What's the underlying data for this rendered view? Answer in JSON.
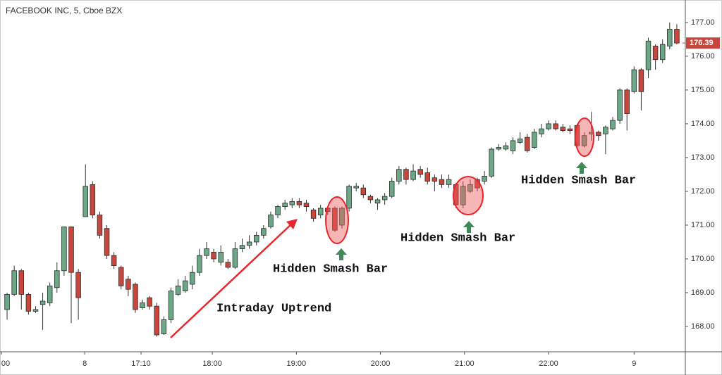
{
  "chart_data": {
    "type": "candlestick",
    "title": "FACEBOOK INC, 5, Cboe BZX",
    "open": [
      168.5,
      168.95,
      169.65,
      168.95,
      168.45,
      168.65,
      168.7,
      169.15,
      169.65,
      170.95,
      169.6,
      171.25,
      172.2,
      171.3,
      170.9,
      170.1,
      169.75,
      169.4,
      169.25,
      168.55,
      168.85,
      168.6,
      167.78,
      168.2,
      168.95,
      169.05,
      169.25,
      169.6,
      170.1,
      170.2,
      169.9,
      169.9,
      169.75,
      170.3,
      170.4,
      170.5,
      170.7,
      170.95,
      171.3,
      171.55,
      171.6,
      171.7,
      171.65,
      171.45,
      171.3,
      171.5,
      171.5,
      171.0,
      171.5,
      172.1,
      172.1,
      171.85,
      171.65,
      171.75,
      171.85,
      172.3,
      172.65,
      172.35,
      172.65,
      172.55,
      172.4,
      172.35,
      172.2,
      172.2,
      171.6,
      172.0,
      172.35,
      172.3,
      172.45,
      173.25,
      173.25,
      173.2,
      173.45,
      173.6,
      173.3,
      173.7,
      173.85,
      174.0,
      173.9,
      173.85,
      173.95,
      173.35,
      173.7,
      173.75,
      173.7,
      173.85,
      174.1,
      175.0,
      174.95,
      175.6,
      175.6,
      176.3,
      175.9,
      176.3,
      176.8
    ],
    "high": [
      169.0,
      169.8,
      169.7,
      169.0,
      168.6,
      169.0,
      169.3,
      169.9,
      170.95,
      170.95,
      169.7,
      172.8,
      172.3,
      171.4,
      171.0,
      170.2,
      169.8,
      169.5,
      169.3,
      168.8,
      168.9,
      168.7,
      168.3,
      169.15,
      169.4,
      169.5,
      169.8,
      170.3,
      170.5,
      170.3,
      170.4,
      170.0,
      170.5,
      170.6,
      170.7,
      170.8,
      171.0,
      171.4,
      171.6,
      171.75,
      171.8,
      171.8,
      171.75,
      171.5,
      171.6,
      171.55,
      171.55,
      171.55,
      172.2,
      172.25,
      172.2,
      171.9,
      171.8,
      171.95,
      172.4,
      172.75,
      172.7,
      172.8,
      172.75,
      172.7,
      172.5,
      172.5,
      172.5,
      172.25,
      172.3,
      172.35,
      172.4,
      172.6,
      173.3,
      173.4,
      173.45,
      173.6,
      173.75,
      173.7,
      173.85,
      174.0,
      174.1,
      174.1,
      174.0,
      173.95,
      174.0,
      173.75,
      174.35,
      173.8,
      173.95,
      174.2,
      175.05,
      175.05,
      175.7,
      175.65,
      176.55,
      176.35,
      176.5,
      177.0,
      176.95
    ],
    "low": [
      168.2,
      168.9,
      168.5,
      168.35,
      168.4,
      167.9,
      168.6,
      169.0,
      169.5,
      168.1,
      168.2,
      171.25,
      171.2,
      170.6,
      170.0,
      169.7,
      169.1,
      168.9,
      168.4,
      168.5,
      168.5,
      167.7,
      167.75,
      168.1,
      168.9,
      169.0,
      169.1,
      169.5,
      170.0,
      169.9,
      169.8,
      169.7,
      169.7,
      170.2,
      170.3,
      170.4,
      170.6,
      170.9,
      171.2,
      171.45,
      171.5,
      171.5,
      171.4,
      171.1,
      171.2,
      171.3,
      170.8,
      170.9,
      171.4,
      172.0,
      171.8,
      171.65,
      171.45,
      171.6,
      171.8,
      172.2,
      172.2,
      172.3,
      172.4,
      172.2,
      172.0,
      172.1,
      172.1,
      171.5,
      171.5,
      171.95,
      172.0,
      172.2,
      172.4,
      173.2,
      173.2,
      173.1,
      173.4,
      173.15,
      173.25,
      173.6,
      173.8,
      173.8,
      173.75,
      173.7,
      173.3,
      173.3,
      173.5,
      173.5,
      173.1,
      173.8,
      174.0,
      173.8,
      174.9,
      174.4,
      175.35,
      175.6,
      175.8,
      176.2,
      176.35
    ],
    "close": [
      168.95,
      169.65,
      168.95,
      168.45,
      168.5,
      168.75,
      169.2,
      169.65,
      170.95,
      169.6,
      168.85,
      172.15,
      171.3,
      170.7,
      170.1,
      169.8,
      169.2,
      169.1,
      168.5,
      168.7,
      168.6,
      167.75,
      168.2,
      169.05,
      169.2,
      169.35,
      169.6,
      170.1,
      170.3,
      170.0,
      170.2,
      169.75,
      170.3,
      170.4,
      170.5,
      170.7,
      170.9,
      171.3,
      171.55,
      171.65,
      171.7,
      171.6,
      171.55,
      171.2,
      171.5,
      171.4,
      170.85,
      171.5,
      172.15,
      172.15,
      171.9,
      171.75,
      171.75,
      171.85,
      172.3,
      172.65,
      172.35,
      172.6,
      172.5,
      172.3,
      172.3,
      172.2,
      172.35,
      171.6,
      172.15,
      172.2,
      172.1,
      172.45,
      173.25,
      173.3,
      173.35,
      173.5,
      173.55,
      173.2,
      173.75,
      173.85,
      174.0,
      173.85,
      173.8,
      173.8,
      173.35,
      173.65,
      173.75,
      173.65,
      173.9,
      174.1,
      175.0,
      174.3,
      175.6,
      174.95,
      176.45,
      175.9,
      176.35,
      176.8,
      176.39
    ],
    "up_color": "#6aa886",
    "down_color": "#c9463d",
    "xlim": [
      -0.6,
      94.6
    ],
    "xticks": [
      {
        "value": -0.8,
        "label": "00"
      },
      {
        "value": 10.9,
        "label": "8"
      },
      {
        "value": 18.8,
        "label": "17:10"
      },
      {
        "value": 28.8,
        "label": "18:00"
      },
      {
        "value": 40.6,
        "label": "19:00"
      },
      {
        "value": 52.4,
        "label": "20:00"
      },
      {
        "value": 64.2,
        "label": "21:00"
      },
      {
        "value": 76.0,
        "label": "22:00"
      },
      {
        "value": 88.0,
        "label": "9"
      }
    ],
    "ylim": [
      167.25,
      177.56
    ],
    "yticks": [
      {
        "value": 168,
        "label": "168.00"
      },
      {
        "value": 169,
        "label": "169.00"
      },
      {
        "value": 170,
        "label": "170.00"
      },
      {
        "value": 171,
        "label": "171.00"
      },
      {
        "value": 172,
        "label": "172.00"
      },
      {
        "value": 173,
        "label": "173.00"
      },
      {
        "value": 174,
        "label": "174.00"
      },
      {
        "value": 175,
        "label": "175.00"
      },
      {
        "value": 176,
        "label": "176.00"
      },
      {
        "value": 177,
        "label": "177.00"
      }
    ],
    "last_price": {
      "value": 176.39,
      "label": "176.39"
    },
    "annotations": [
      "Intraday Uptrend",
      "Hidden Smash Bar",
      "Hidden Smash Bar",
      "Hidden Smash Bar"
    ]
  }
}
